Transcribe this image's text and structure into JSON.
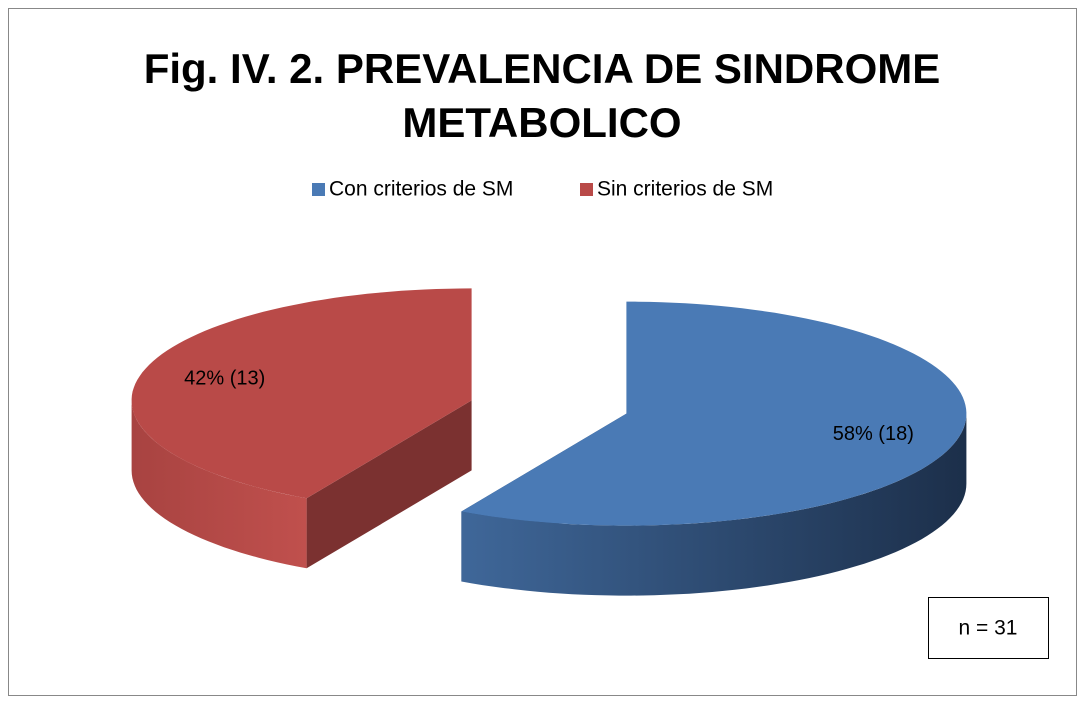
{
  "chart_data": {
    "type": "pie",
    "title": "Fig. IV. 2. PREVALENCIA DE SINDROME METABOLICO",
    "categories": [
      "Con criterios de SM",
      "Sin criterios de SM"
    ],
    "values": [
      18,
      13
    ],
    "value_labels": [
      "58% (18)",
      "42% (13)"
    ],
    "colors": [
      "#4a7ab5",
      "#b94a48"
    ],
    "legend": "top",
    "annotation": "n = 31"
  }
}
